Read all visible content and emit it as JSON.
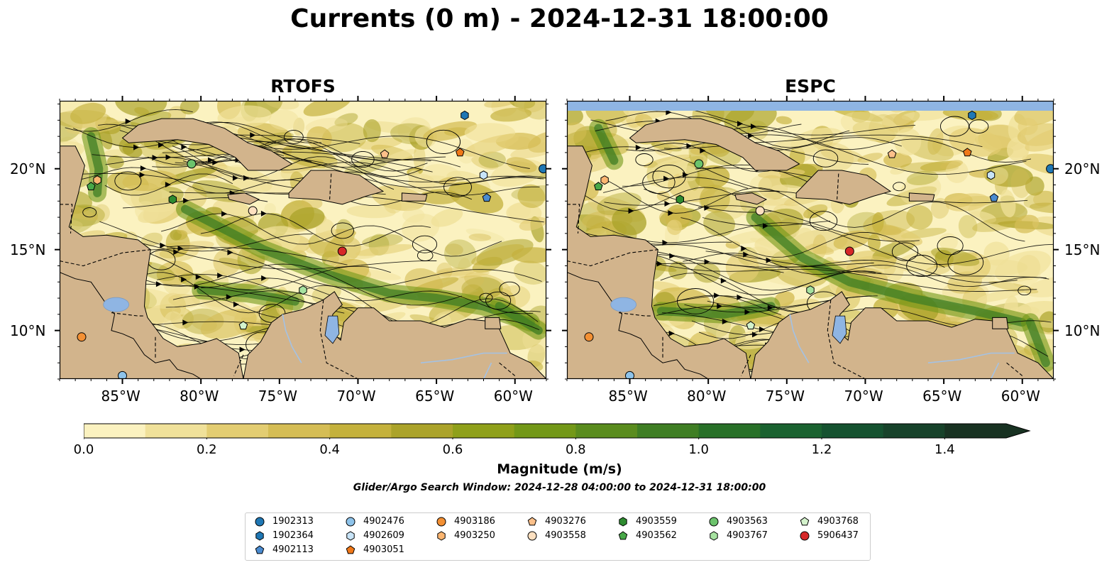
{
  "title": "Currents (0 m) - 2024-12-31 18:00:00",
  "panels": [
    {
      "title": "RTOFS"
    },
    {
      "title": "ESPC"
    }
  ],
  "x_ticks": [
    "85°W",
    "80°W",
    "75°W",
    "70°W",
    "65°W",
    "60°W"
  ],
  "x_tick_values": [
    -85,
    -80,
    -75,
    -70,
    -65,
    -60
  ],
  "y_ticks": [
    "20°N",
    "15°N",
    "10°N"
  ],
  "y_tick_values": [
    20,
    15,
    10
  ],
  "extent": {
    "lon": [
      -89,
      -58
    ],
    "lat": [
      7,
      24.2
    ]
  },
  "colors": {
    "land": "#d2b48c",
    "ocean_low": "#fbf2c0",
    "lake": "#8fb5e3",
    "river": "#a4c2e4",
    "stream": "#000000"
  },
  "colorbar": {
    "label": "Magnitude (m/s)",
    "ticks": [
      "0.0",
      "0.2",
      "0.4",
      "0.6",
      "0.8",
      "1.0",
      "1.2",
      "1.4"
    ],
    "tick_values": [
      0.0,
      0.2,
      0.4,
      0.6,
      0.8,
      1.0,
      1.2,
      1.4
    ],
    "range": [
      0,
      1.5
    ],
    "extend": "max",
    "colors": [
      "#fbf2c0",
      "#f0e19a",
      "#e3cd72",
      "#d5bd55",
      "#c4b13c",
      "#aba32a",
      "#8fa01a",
      "#739818",
      "#5a8c1e",
      "#3f7e24",
      "#287028",
      "#1a6230",
      "#155230",
      "#17422a",
      "#183222"
    ]
  },
  "search_window": "Glider/Argo Search Window: 2024-12-28 04:00:00 to 2024-12-31 18:00:00",
  "floats": [
    {
      "id": "1902313",
      "marker": "circle",
      "color": "#1f77b4",
      "lon": -58.2,
      "lat": 20.0
    },
    {
      "id": "1902364",
      "marker": "hexagon",
      "color": "#1f77b4",
      "lon": -63.2,
      "lat": 23.3
    },
    {
      "id": "4902113",
      "marker": "pentagon",
      "color": "#4a8bd0",
      "lon": -61.8,
      "lat": 18.2
    },
    {
      "id": "4902476",
      "marker": "circle",
      "color": "#8ec3ea",
      "lon": -85.0,
      "lat": 7.2
    },
    {
      "id": "4902609",
      "marker": "hexagon",
      "color": "#c8e4f8",
      "lon": -62.0,
      "lat": 19.6
    },
    {
      "id": "4903051",
      "marker": "pentagon",
      "color": "#f07818",
      "lon": -63.5,
      "lat": 21.0
    },
    {
      "id": "4903186",
      "marker": "circle",
      "color": "#f39034",
      "lon": -87.6,
      "lat": 9.6
    },
    {
      "id": "4903250",
      "marker": "hexagon",
      "color": "#fbb570",
      "lon": -86.6,
      "lat": 19.3
    },
    {
      "id": "4903276",
      "marker": "pentagon",
      "color": "#fcc08a",
      "lon": -68.3,
      "lat": 20.9
    },
    {
      "id": "4903558",
      "marker": "circle",
      "color": "#fde0c0",
      "lon": -76.7,
      "lat": 17.4
    },
    {
      "id": "4903559",
      "marker": "hexagon",
      "color": "#2e8b30",
      "lon": -81.8,
      "lat": 18.1
    },
    {
      "id": "4903562",
      "marker": "pentagon",
      "color": "#48a848",
      "lon": -87.0,
      "lat": 18.9
    },
    {
      "id": "4903563",
      "marker": "circle",
      "color": "#6cc36c",
      "lon": -80.6,
      "lat": 20.3
    },
    {
      "id": "4903767",
      "marker": "hexagon",
      "color": "#a6e2a0",
      "lon": -73.5,
      "lat": 12.5
    },
    {
      "id": "4903768",
      "marker": "pentagon",
      "color": "#d4f2cc",
      "lon": -77.3,
      "lat": 10.3
    },
    {
      "id": "5906437",
      "marker": "circle",
      "color": "#d62728",
      "lon": -71.0,
      "lat": 14.9
    }
  ]
}
